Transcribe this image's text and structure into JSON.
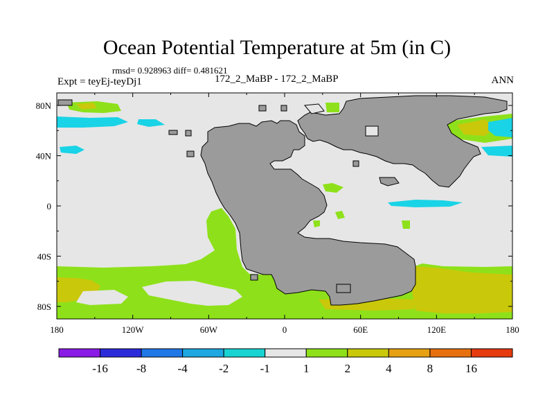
{
  "header": {
    "title": "Ocean Potential Temperature at 5m (in C)",
    "stats": "rmsd= 0.928963 diff= 0.481621",
    "experiment": "Expt = teyEj-teyDj1",
    "comparison": "172_2_MaBP - 172_2_MaBP",
    "period": "ANN"
  },
  "map": {
    "projection": "cylindrical-equidistant",
    "lon_range": [
      -180,
      180
    ],
    "lat_range": [
      -90,
      90
    ],
    "lon_ticks": [
      {
        "value": -180,
        "label": "180"
      },
      {
        "value": -120,
        "label": "120W"
      },
      {
        "value": -60,
        "label": "60W"
      },
      {
        "value": 0,
        "label": "0"
      },
      {
        "value": 60,
        "label": "60E"
      },
      {
        "value": 120,
        "label": "120E"
      },
      {
        "value": 180,
        "label": "180"
      }
    ],
    "lat_ticks": [
      {
        "value": 80,
        "label": "80N"
      },
      {
        "value": 40,
        "label": "40N"
      },
      {
        "value": 0,
        "label": "0"
      },
      {
        "value": -40,
        "label": "40S"
      },
      {
        "value": -80,
        "label": "80S"
      }
    ],
    "colors": {
      "land": "#9b9b9b",
      "background": "#e6e6e6",
      "cyan": "#19d3e6",
      "green": "#8ee11a",
      "yellow": "#c9c80a",
      "orange": "#e6a012"
    }
  },
  "colorbar": {
    "boundaries": [
      "-16",
      "-8",
      "-4",
      "-2",
      "-1",
      "1",
      "2",
      "4",
      "8",
      "16"
    ],
    "colors": [
      "#8a1ae6",
      "#2b2bdb",
      "#1f78e6",
      "#1ea7e0",
      "#19d3d3",
      "#e6e6e6",
      "#8ee11a",
      "#c9c80a",
      "#e6a012",
      "#e6700f",
      "#e63a0f"
    ]
  }
}
